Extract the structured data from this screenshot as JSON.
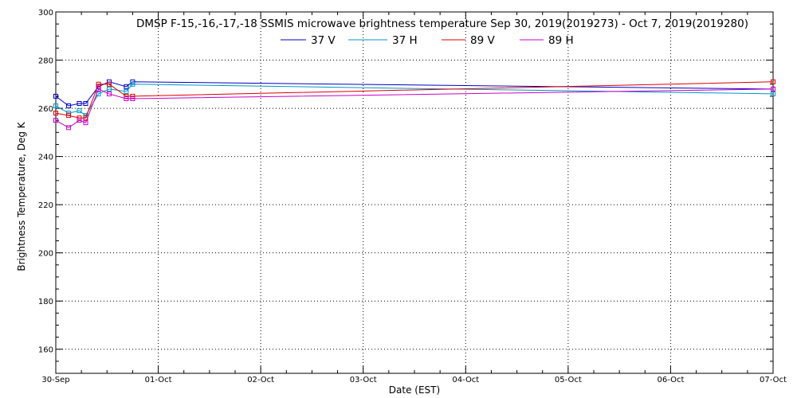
{
  "chart_data": {
    "type": "line",
    "title": "DMSP F-15,-16,-17,-18 SSMIS microwave brightness temperature Sep 30, 2019(2019273) - Oct  7, 2019(2019280)",
    "xlabel": "Date (EST)",
    "ylabel": "Brightness Temperature, Deg K",
    "xlim": [
      "2019-09-30T00:00",
      "2019-10-07T00:00"
    ],
    "ylim": [
      150,
      300
    ],
    "y_ticks": [
      160,
      180,
      200,
      220,
      240,
      260,
      280,
      300
    ],
    "x_ticks": [
      "30-Sep",
      "01-Oct",
      "02-Oct",
      "03-Oct",
      "04-Oct",
      "05-Oct",
      "06-Oct",
      "07-Oct"
    ],
    "grid": true,
    "legend_position": "top-center",
    "series": [
      {
        "name": "37 V",
        "color": "#0000c8",
        "x": [
          "2019-09-30T00:00",
          "2019-09-30T03:00",
          "2019-09-30T05:30",
          "2019-09-30T07:00",
          "2019-09-30T10:00",
          "2019-09-30T12:30",
          "2019-09-30T16:30",
          "2019-09-30T18:00",
          "2019-10-07T00:00"
        ],
        "y": [
          265,
          261,
          262,
          262,
          269,
          271,
          269,
          271,
          268
        ]
      },
      {
        "name": "37 H",
        "color": "#0096c8",
        "x": [
          "2019-09-30T00:00",
          "2019-09-30T03:00",
          "2019-09-30T05:30",
          "2019-09-30T07:00",
          "2019-09-30T10:00",
          "2019-09-30T12:30",
          "2019-09-30T16:30",
          "2019-09-30T18:00",
          "2019-10-07T00:00"
        ],
        "y": [
          261,
          258,
          259,
          257,
          266,
          268,
          267,
          270,
          266
        ]
      },
      {
        "name": "89 V",
        "color": "#dc0000",
        "x": [
          "2019-09-30T00:00",
          "2019-09-30T03:00",
          "2019-09-30T05:30",
          "2019-09-30T07:00",
          "2019-09-30T10:00",
          "2019-09-30T12:30",
          "2019-09-30T16:30",
          "2019-09-30T18:00",
          "2019-10-07T00:00"
        ],
        "y": [
          258,
          257,
          256,
          256,
          270,
          270,
          265,
          265,
          271
        ]
      },
      {
        "name": "89 H",
        "color": "#c800c8",
        "x": [
          "2019-09-30T00:00",
          "2019-09-30T03:00",
          "2019-09-30T05:30",
          "2019-09-30T07:00",
          "2019-09-30T10:00",
          "2019-09-30T12:30",
          "2019-09-30T16:30",
          "2019-09-30T18:00",
          "2019-10-07T00:00"
        ],
        "y": [
          255,
          252,
          255,
          254,
          268,
          266,
          264,
          264,
          268
        ]
      }
    ]
  }
}
